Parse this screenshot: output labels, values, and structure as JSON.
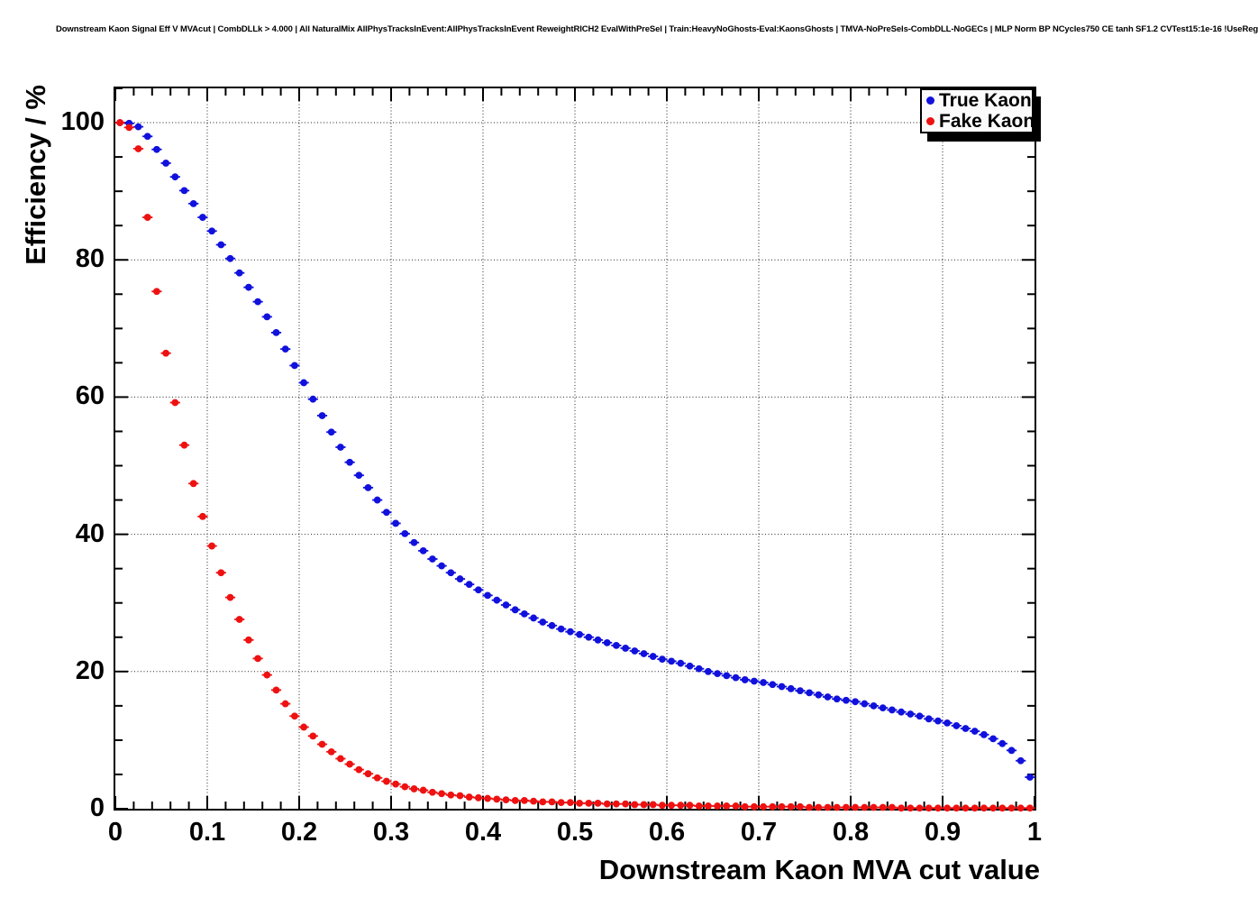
{
  "chart_data": {
    "type": "scatter",
    "title": "Downstream Kaon Signal Eff V MVAcut | CombDLLk > 4.000 | All NaturalMix AllPhysTracksInEvent:AllPhysTracksInEvent ReweightRICH2 EvalWithPreSel | Train:HeavyNoGhosts-Eval:KaonsGhosts | TMVA-NoPreSels-CombDLL-NoGECs | MLP Norm BP NCycles750 CE tanh SF1.2 CVTest15:1e-16 !UseReg",
    "xlabel": "Downstream Kaon MVA cut value",
    "ylabel": "Efficiency / %",
    "xlim": [
      0,
      1
    ],
    "ylim": [
      0,
      105
    ],
    "grid": true,
    "grid_style": "dotted",
    "x_ticks": [
      0,
      0.1,
      0.2,
      0.3,
      0.4,
      0.5,
      0.6,
      0.7,
      0.8,
      0.9,
      1
    ],
    "x_tick_labels": [
      "0",
      "0.1",
      "0.2",
      "0.3",
      "0.4",
      "0.5",
      "0.6",
      "0.7",
      "0.8",
      "0.9",
      "1"
    ],
    "x_minor_step": 0.02,
    "y_ticks": [
      0,
      20,
      40,
      60,
      80,
      100
    ],
    "y_tick_labels": [
      "0",
      "20",
      "40",
      "60",
      "80",
      "100"
    ],
    "y_minor_step": 5,
    "x_start": 0.005,
    "x_step": 0.01,
    "x_error": 0.005,
    "legend": {
      "position": "top-right",
      "entries": [
        {
          "label": "True Kaon",
          "color": "#1111dd"
        },
        {
          "label": "Fake Kaon",
          "color": "#ee1111"
        }
      ]
    },
    "series": [
      {
        "name": "True Kaon",
        "color": "#1111dd",
        "marker": "filled-circle",
        "values": [
          100,
          99.9,
          99.4,
          98,
          96.1,
          94.1,
          92.1,
          90.1,
          88.2,
          86.2,
          84.2,
          82.2,
          80.2,
          78.1,
          76,
          73.9,
          71.7,
          69.4,
          67,
          64.6,
          62.1,
          59.7,
          57.3,
          54.9,
          52.7,
          50.5,
          48.6,
          46.8,
          45,
          43.2,
          41.6,
          40.1,
          38.8,
          37.6,
          36.4,
          35.4,
          34.4,
          33.5,
          32.7,
          31.9,
          31.1,
          30.4,
          29.7,
          29,
          28.4,
          27.8,
          27.2,
          26.7,
          26.2,
          25.8,
          25.4,
          25,
          24.6,
          24.2,
          23.8,
          23.4,
          23,
          22.6,
          22.2,
          21.8,
          21.5,
          21.2,
          20.8,
          20.4,
          20,
          19.7,
          19.4,
          19.1,
          18.8,
          18.6,
          18.4,
          18.1,
          17.8,
          17.5,
          17.2,
          16.9,
          16.6,
          16.3,
          16,
          15.8,
          15.6,
          15.3,
          15,
          14.7,
          14.4,
          14.1,
          13.8,
          13.5,
          13.1,
          12.8,
          12.5,
          12.1,
          11.7,
          11.3,
          10.8,
          10.2,
          9.5,
          8.5,
          7,
          4.6
        ]
      },
      {
        "name": "Fake Kaon",
        "color": "#ee1111",
        "marker": "filled-circle",
        "values": [
          100,
          99.3,
          96.2,
          86.2,
          75.4,
          66.4,
          59.2,
          53,
          47.4,
          42.6,
          38.3,
          34.4,
          30.8,
          27.6,
          24.6,
          21.9,
          19.5,
          17.3,
          15.3,
          13.5,
          11.9,
          10.6,
          9.4,
          8.3,
          7.3,
          6.5,
          5.7,
          5.1,
          4.5,
          4,
          3.6,
          3.2,
          2.9,
          2.7,
          2.4,
          2.2,
          2,
          1.9,
          1.7,
          1.6,
          1.5,
          1.4,
          1.3,
          1.2,
          1.2,
          1.1,
          1,
          1,
          0.9,
          0.9,
          0.8,
          0.8,
          0.8,
          0.7,
          0.7,
          0.7,
          0.6,
          0.6,
          0.6,
          0.5,
          0.5,
          0.5,
          0.5,
          0.4,
          0.4,
          0.4,
          0.4,
          0.4,
          0.3,
          0.3,
          0.3,
          0.3,
          0.3,
          0.3,
          0.3,
          0.2,
          0.2,
          0.2,
          0.2,
          0.2,
          0.2,
          0.2,
          0.2,
          0.2,
          0.2,
          0.1,
          0.1,
          0.1,
          0.1,
          0.1,
          0.1,
          0.1,
          0.1,
          0.1,
          0.1,
          0.1,
          0.1,
          0.1,
          0.1,
          0.1
        ]
      }
    ]
  }
}
